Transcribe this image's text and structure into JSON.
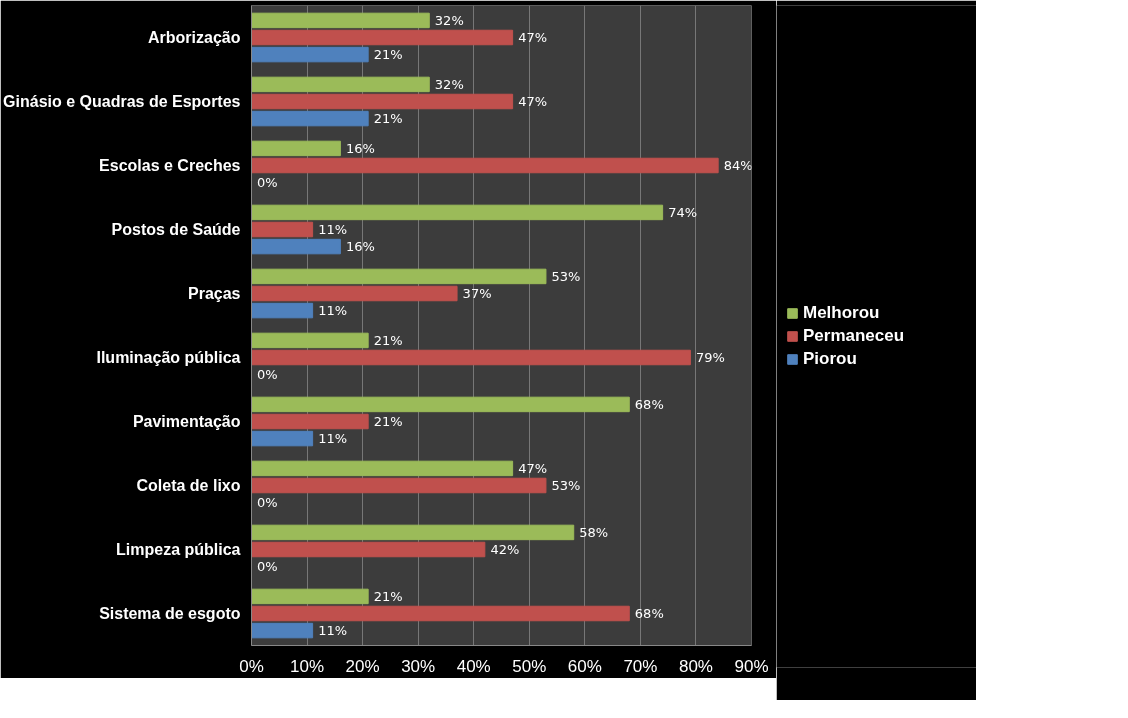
{
  "chart_data": {
    "type": "bar",
    "orientation": "horizontal",
    "categories": [
      "Arborização",
      "Ginásio e Quadras de Esportes",
      "Escolas e Creches",
      "Postos de Saúde",
      "Praças",
      "Iluminação pública",
      "Pavimentação",
      "Coleta de lixo",
      "Limpeza pública",
      "Sistema de esgoto"
    ],
    "series": [
      {
        "name": "Melhorou",
        "color": "#9bbb59",
        "values": [
          32,
          32,
          16,
          74,
          53,
          21,
          68,
          47,
          58,
          21
        ],
        "value_labels": [
          "32%",
          "32%",
          "16%",
          "74%",
          "53%",
          "21%",
          "68%",
          "47%",
          "58%",
          "21%"
        ]
      },
      {
        "name": "Permaneceu",
        "color": "#c0504d",
        "values": [
          47,
          47,
          84,
          11,
          37,
          79,
          21,
          53,
          42,
          68
        ],
        "value_labels": [
          "47%",
          "47%",
          "84%",
          "11%",
          "37%",
          "79%",
          "21%",
          "53%",
          "42%",
          "68%"
        ]
      },
      {
        "name": "Piorou",
        "color": "#4f81bd",
        "values": [
          21,
          21,
          0,
          16,
          11,
          0,
          11,
          0,
          0,
          11
        ],
        "value_labels": [
          "21%",
          "21%",
          "0%",
          "16%",
          "11%",
          "0%",
          "11%",
          "0%",
          "0%",
          "11%"
        ]
      }
    ],
    "xlim": [
      0,
      90
    ],
    "xticks": [
      {
        "value": 0,
        "label": "0%"
      },
      {
        "value": 10,
        "label": "10%"
      },
      {
        "value": 20,
        "label": "20%"
      },
      {
        "value": 30,
        "label": "30%"
      },
      {
        "value": 40,
        "label": "40%"
      },
      {
        "value": 50,
        "label": "50%"
      },
      {
        "value": 60,
        "label": "60%"
      },
      {
        "value": 70,
        "label": "70%"
      },
      {
        "value": 80,
        "label": "80%"
      },
      {
        "value": 90,
        "label": "90%"
      }
    ],
    "grid": "x",
    "legend": "right"
  }
}
